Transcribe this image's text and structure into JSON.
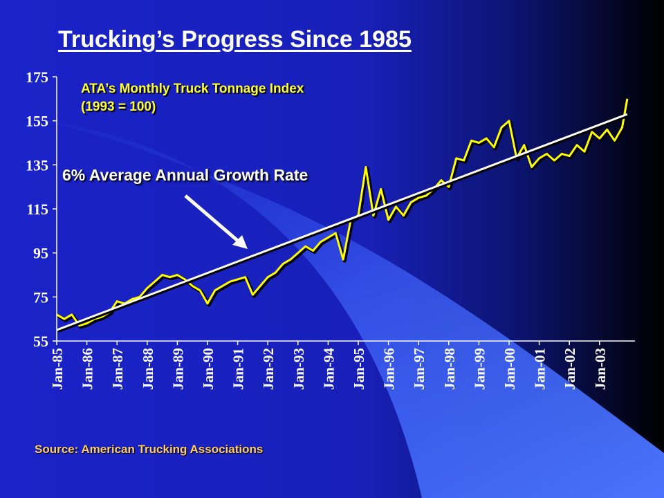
{
  "slide": {
    "title": "Trucking’s Progress Since 1985",
    "source": "Source: American Trucking Associations"
  },
  "chart_data": {
    "type": "line",
    "title": "ATA’s Monthly Truck Tonnage Index",
    "subtitle": "(1993 = 100)",
    "annotation": "6% Average Annual Growth Rate",
    "ylim": [
      55,
      175
    ],
    "yticks": [
      55,
      75,
      95,
      115,
      135,
      155,
      175
    ],
    "x_tick_labels": [
      "Jan-85",
      "Jan-86",
      "Jan-87",
      "Jan-88",
      "Jan-89",
      "Jan-90",
      "Jan-91",
      "Jan-92",
      "Jan-93",
      "Jan-94",
      "Jan-95",
      "Jan-96",
      "Jan-97",
      "Jan-98",
      "Jan-99",
      "Jan-00",
      "Jan-01",
      "Jan-02",
      "Jan-03"
    ],
    "grid": false,
    "series": [
      {
        "kind": "actual",
        "color": "#ffff00",
        "x": [
          1985.0,
          1985.25,
          1985.5,
          1985.75,
          1986.0,
          1986.25,
          1986.5,
          1986.75,
          1987.0,
          1987.25,
          1987.5,
          1987.75,
          1988.0,
          1988.25,
          1988.5,
          1988.75,
          1989.0,
          1989.25,
          1989.5,
          1989.75,
          1990.0,
          1990.25,
          1990.5,
          1990.75,
          1991.0,
          1991.25,
          1991.5,
          1991.75,
          1992.0,
          1992.25,
          1992.5,
          1992.75,
          1993.0,
          1993.25,
          1993.5,
          1993.75,
          1994.0,
          1994.25,
          1994.5,
          1994.75,
          1995.0,
          1995.25,
          1995.5,
          1995.75,
          1996.0,
          1996.25,
          1996.5,
          1996.75,
          1997.0,
          1997.25,
          1997.5,
          1997.75,
          1998.0,
          1998.25,
          1998.5,
          1998.75,
          1999.0,
          1999.25,
          1999.5,
          1999.75,
          2000.0,
          2000.25,
          2000.5,
          2000.75,
          2001.0,
          2001.25,
          2001.5,
          2001.75,
          2002.0,
          2002.25,
          2002.5,
          2002.75,
          2003.0,
          2003.25,
          2003.5,
          2003.75,
          2003.92
        ],
        "y": [
          67,
          65,
          67,
          62,
          63,
          65,
          66,
          68,
          73,
          72,
          74,
          75,
          79,
          82,
          85,
          84,
          85,
          83,
          80,
          78,
          72,
          78,
          80,
          82,
          83,
          84,
          76,
          80,
          84,
          86,
          90,
          92,
          95,
          98,
          96,
          100,
          102,
          104,
          92,
          110,
          112,
          134,
          112,
          124,
          110,
          116,
          112,
          118,
          120,
          121,
          124,
          128,
          125,
          138,
          137,
          146,
          145,
          147,
          143,
          152,
          155,
          138,
          144,
          134,
          138,
          140,
          137,
          140,
          139,
          144,
          141,
          150,
          147,
          151,
          146,
          152,
          165
        ]
      },
      {
        "kind": "trend",
        "color": "#ffffff",
        "x": [
          1985.0,
          2003.92
        ],
        "y": [
          60,
          158
        ]
      }
    ]
  }
}
